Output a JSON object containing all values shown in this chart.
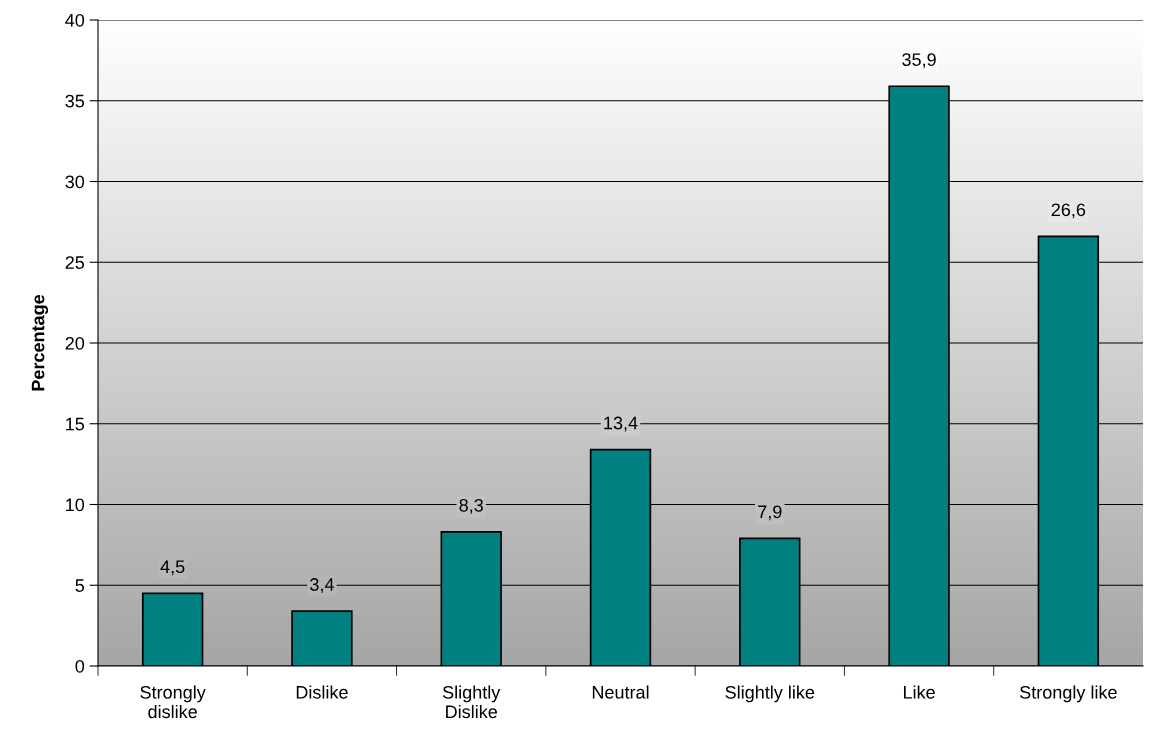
{
  "chart_data": {
    "type": "bar",
    "ylabel": "Percentage",
    "categories": [
      "Strongly\ndislike",
      "Dislike",
      "Slightly\nDislike",
      "Neutral",
      "Slightly like",
      "Like",
      "Strongly like"
    ],
    "values": [
      4.5,
      3.4,
      8.3,
      13.4,
      7.9,
      35.9,
      26.6
    ],
    "value_labels": [
      "4,5",
      "3,4",
      "8,3",
      "13,4",
      "7,9",
      "35,9",
      "26,6"
    ],
    "color": "#008080",
    "ylim": [
      0,
      40
    ],
    "yticks": [
      0,
      5,
      10,
      15,
      20,
      25,
      30,
      35,
      40
    ],
    "grid": "y",
    "legend": false
  }
}
